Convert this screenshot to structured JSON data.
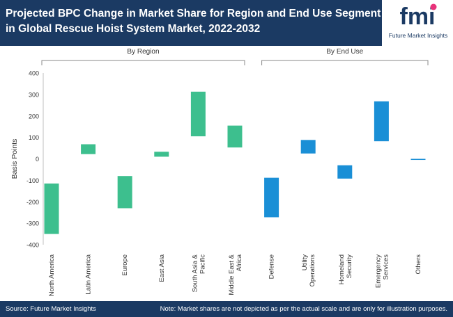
{
  "header": {
    "title": "Projected BPC Change in Market Share for Region and End Use Segment in Global Rescue Hoist System Market, 2022-2032"
  },
  "logo": {
    "mark": "fmi",
    "name": "Future Market Insights"
  },
  "footer": {
    "source": "Source: Future Market Insights",
    "note": "Note: Market shares are not depicted as per the actual scale and are only for illustration purposes."
  },
  "colors": {
    "header_bg": "#1b3a63",
    "region_bar": "#3dbf8e",
    "enduse_bar": "#1a8fd6",
    "accent_pink": "#e8327a"
  },
  "chart_data": {
    "type": "bar",
    "subtype": "floating",
    "title": "Projected BPC Change in Market Share for Region and End Use Segment in Global Rescue Hoist System Market, 2022-2032",
    "ylabel": "Basis Points",
    "ylim": [
      -400,
      400
    ],
    "yticks": [
      400,
      300,
      200,
      100,
      0,
      -100,
      -200,
      -300,
      -400
    ],
    "groups": [
      {
        "name": "By Region",
        "color": "#3dbf8e",
        "categories": [
          "North America",
          "Latin America",
          "Europe",
          "East Asia",
          "South Asia & Pacific",
          "Middle East & Africa"
        ],
        "ranges": [
          [
            -350,
            -115
          ],
          [
            22,
            68
          ],
          [
            -230,
            -80
          ],
          [
            10,
            33
          ],
          [
            105,
            313
          ],
          [
            53,
            155
          ]
        ]
      },
      {
        "name": "By End Use",
        "color": "#1a8fd6",
        "categories": [
          "Defense",
          "Utility Operations",
          "Homeland Security",
          "Emergency Services",
          "Others"
        ],
        "ranges": [
          [
            -272,
            -88
          ],
          [
            25,
            88
          ],
          [
            -92,
            -30
          ],
          [
            82,
            268
          ],
          [
            -5,
            0
          ]
        ]
      }
    ]
  }
}
